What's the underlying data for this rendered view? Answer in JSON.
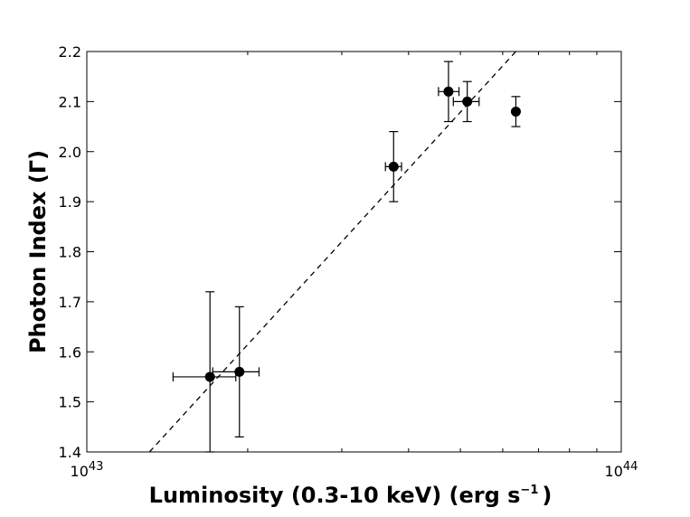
{
  "chart_data": {
    "type": "scatter",
    "xlabel": "Luminosity (0.3-10 keV) (erg s",
    "xlabel_superscript": "−1",
    "xlabel_close": ")",
    "ylabel": "Photon Index (Γ)",
    "x_scale": "log",
    "xlim": [
      1e+43,
      1e+44
    ],
    "ylim": [
      1.4,
      2.2
    ],
    "x_tick_labels": [
      {
        "value": 1e+43,
        "base": "10",
        "exp": "43"
      },
      {
        "value": 1e+44,
        "base": "10",
        "exp": "44"
      }
    ],
    "y_ticks": [
      1.4,
      1.5,
      1.6,
      1.7,
      1.8,
      1.9,
      2.0,
      2.1,
      2.2
    ],
    "y_tick_labels": [
      "1.4",
      "1.5",
      "1.6",
      "1.7",
      "1.8",
      "1.9",
      "2.0",
      "2.1",
      "2.2"
    ],
    "grid": false,
    "colors": {
      "points": "#000000",
      "fit_line": "#000000"
    },
    "points": [
      {
        "x": 1.7e+43,
        "y": 1.55,
        "x_lo": 1.45e+43,
        "x_hi": 1.9e+43,
        "y_lo": 1.4,
        "y_hi": 1.72
      },
      {
        "x": 1.93e+43,
        "y": 1.56,
        "x_lo": 1.72e+43,
        "x_hi": 2.1e+43,
        "y_lo": 1.43,
        "y_hi": 1.69
      },
      {
        "x": 3.75e+43,
        "y": 1.97,
        "x_lo": 3.62e+43,
        "x_hi": 3.88e+43,
        "y_lo": 1.9,
        "y_hi": 2.04
      },
      {
        "x": 4.75e+43,
        "y": 2.12,
        "x_lo": 4.55e+43,
        "x_hi": 4.97e+43,
        "y_lo": 2.06,
        "y_hi": 2.18
      },
      {
        "x": 5.15e+43,
        "y": 2.1,
        "x_lo": 4.85e+43,
        "x_hi": 5.42e+43,
        "y_lo": 2.06,
        "y_hi": 2.14
      },
      {
        "x": 6.35e+43,
        "y": 2.08,
        "x_lo": 6.35e+43,
        "x_hi": 6.35e+43,
        "y_lo": 2.05,
        "y_hi": 2.11
      }
    ],
    "fit_line": {
      "style": "dashed",
      "x": [
        1.31e+43,
        6.35e+43
      ],
      "y": [
        1.4,
        2.2
      ]
    }
  }
}
